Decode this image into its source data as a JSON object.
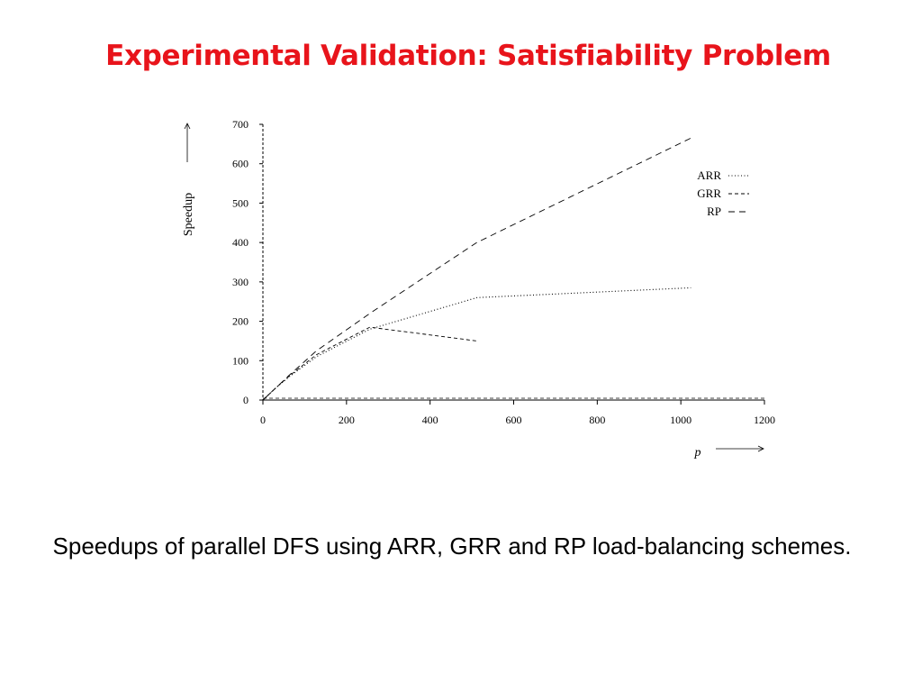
{
  "slide": {
    "title": "Experimental Validation: Satisfiability Problem",
    "title_color": "#e8141b",
    "caption": "Speedups of parallel DFS using ARR, GRR and RP load-balancing schemes."
  },
  "chart_data": {
    "type": "line",
    "title": "",
    "xlabel": "p",
    "ylabel": "Speedup",
    "xlim": [
      0,
      1200
    ],
    "ylim": [
      0,
      700
    ],
    "xticks": [
      0,
      200,
      400,
      600,
      800,
      1000,
      1200
    ],
    "yticks": [
      0,
      100,
      200,
      300,
      400,
      500,
      600,
      700
    ],
    "grid": false,
    "legend_position": "top-right",
    "series": [
      {
        "name": "ARR",
        "style": "dotted",
        "x": [
          1,
          8,
          16,
          32,
          64,
          128,
          256,
          512,
          1024
        ],
        "y": [
          1,
          8,
          16,
          32,
          60,
          110,
          180,
          260,
          285
        ]
      },
      {
        "name": "GRR",
        "style": "dashed",
        "x": [
          1,
          8,
          16,
          32,
          64,
          128,
          256,
          512
        ],
        "y": [
          1,
          8,
          16,
          32,
          62,
          115,
          185,
          150
        ]
      },
      {
        "name": "RP",
        "style": "long-dashed",
        "x": [
          1,
          8,
          16,
          32,
          64,
          128,
          256,
          512,
          1024
        ],
        "y": [
          1,
          8,
          16,
          32,
          64,
          125,
          220,
          400,
          665
        ]
      }
    ]
  }
}
